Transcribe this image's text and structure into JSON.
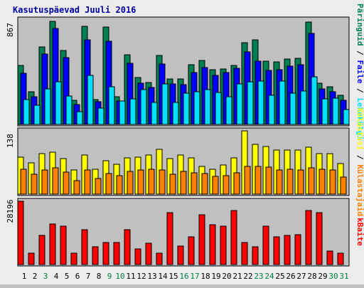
{
  "title": "Kasutuspäevad Juuli 2016",
  "colors": {
    "page_bg": "#ececec",
    "panel_bg": "#c0c0c0",
    "hits": "#008050",
    "files": "#0000ff",
    "pages": "#00e0ff",
    "visits": "#ffff00",
    "sites": "#ff8000",
    "kbytes": "#ff0000",
    "weekday": "#000000",
    "weekend": "#008040",
    "title": "#0000a0"
  },
  "chart_data": [
    {
      "type": "bar",
      "panel": "hits-files-pages",
      "ymax_label": "867",
      "ylim": [
        0,
        867
      ],
      "categories": [
        "1",
        "2",
        "3",
        "4",
        "5",
        "6",
        "7",
        "8",
        "9",
        "10",
        "11",
        "12",
        "13",
        "14",
        "15",
        "16",
        "17",
        "18",
        "19",
        "20",
        "21",
        "22",
        "23",
        "24",
        "25",
        "26",
        "27",
        "28",
        "29",
        "30",
        "31"
      ],
      "series": [
        {
          "name": "Päringuid",
          "color": "#008050",
          "values": [
            494,
            276,
            650,
            867,
            619,
            204,
            824,
            211,
            818,
            233,
            583,
            395,
            350,
            582,
            381,
            383,
            500,
            537,
            458,
            467,
            495,
            688,
            709,
            530,
            528,
            551,
            557,
            863,
            347,
            317,
            248
          ]
        },
        {
          "name": "Faile",
          "color": "#0000ff",
          "values": [
            432,
            232,
            591,
            805,
            562,
            165,
            711,
            191,
            700,
            196,
            512,
            346,
            309,
            508,
            343,
            335,
            434,
            481,
            412,
            436,
            475,
            610,
            530,
            457,
            463,
            490,
            500,
            763,
            297,
            276,
            204
          ]
        },
        {
          "name": "Lehekülgi",
          "color": "#00e0ff",
          "values": [
            211,
            162,
            300,
            358,
            239,
            109,
            411,
            139,
            317,
            199,
            213,
            290,
            187,
            343,
            187,
            265,
            275,
            290,
            269,
            233,
            338,
            358,
            364,
            247,
            363,
            266,
            282,
            401,
            214,
            222,
            127
          ]
        }
      ]
    },
    {
      "type": "bar",
      "panel": "visits-sites",
      "ymax_label": "138",
      "ylim": [
        0,
        138
      ],
      "categories": [
        "1",
        "2",
        "3",
        "4",
        "5",
        "6",
        "7",
        "8",
        "9",
        "10",
        "11",
        "12",
        "13",
        "14",
        "15",
        "16",
        "17",
        "18",
        "19",
        "20",
        "21",
        "22",
        "23",
        "24",
        "25",
        "26",
        "27",
        "28",
        "29",
        "30",
        "31"
      ],
      "series": [
        {
          "name": "Külastusi",
          "color": "#ffff00",
          "values": [
            81,
            68,
            89,
            92,
            77,
            53,
            85,
            55,
            73,
            65,
            79,
            81,
            86,
            98,
            77,
            85,
            79,
            60,
            55,
            64,
            79,
            138,
            108,
            104,
            96,
            96,
            96,
            102,
            89,
            89,
            66
          ]
        },
        {
          "name": "Külastajaid",
          "color": "#ff8000",
          "values": [
            55,
            43,
            52,
            58,
            48,
            30,
            52,
            34,
            45,
            41,
            49,
            53,
            54,
            52,
            44,
            50,
            47,
            45,
            39,
            41,
            46,
            60,
            60,
            59,
            52,
            54,
            53,
            57,
            55,
            52,
            37
          ]
        }
      ]
    },
    {
      "type": "bar",
      "panel": "kbytes",
      "ymax_label": "28196",
      "ylim": [
        0,
        28196
      ],
      "categories": [
        "1",
        "2",
        "3",
        "4",
        "5",
        "6",
        "7",
        "8",
        "9",
        "10",
        "11",
        "12",
        "13",
        "14",
        "15",
        "16",
        "17",
        "18",
        "19",
        "20",
        "21",
        "22",
        "23",
        "24",
        "25",
        "26",
        "27",
        "28",
        "29",
        "30",
        "31"
      ],
      "series": [
        {
          "name": "kBaite",
          "color": "#ff0000",
          "values": [
            28196,
            5042,
            12895,
            18019,
            16959,
            5042,
            15584,
            7794,
            9833,
            9833,
            15584,
            6877,
            9374,
            5042,
            23150,
            8251,
            12437,
            22233,
            17876,
            16959,
            24067,
            9833,
            7794,
            16959,
            12437,
            12895,
            13353,
            24067,
            23150,
            5958,
            5042
          ]
        }
      ]
    }
  ],
  "days": [
    {
      "label": "1",
      "weekend": false
    },
    {
      "label": "2",
      "weekend": false
    },
    {
      "label": "3",
      "weekend": true
    },
    {
      "label": "4",
      "weekend": false
    },
    {
      "label": "5",
      "weekend": false
    },
    {
      "label": "6",
      "weekend": false
    },
    {
      "label": "7",
      "weekend": false
    },
    {
      "label": "8",
      "weekend": false
    },
    {
      "label": "9",
      "weekend": true
    },
    {
      "label": "10",
      "weekend": true
    },
    {
      "label": "11",
      "weekend": false
    },
    {
      "label": "12",
      "weekend": false
    },
    {
      "label": "13",
      "weekend": false
    },
    {
      "label": "14",
      "weekend": false
    },
    {
      "label": "15",
      "weekend": false
    },
    {
      "label": "16",
      "weekend": true
    },
    {
      "label": "17",
      "weekend": true
    },
    {
      "label": "18",
      "weekend": false
    },
    {
      "label": "19",
      "weekend": false
    },
    {
      "label": "20",
      "weekend": false
    },
    {
      "label": "21",
      "weekend": false
    },
    {
      "label": "22",
      "weekend": false
    },
    {
      "label": "23",
      "weekend": true
    },
    {
      "label": "24",
      "weekend": true
    },
    {
      "label": "25",
      "weekend": false
    },
    {
      "label": "26",
      "weekend": false
    },
    {
      "label": "27",
      "weekend": false
    },
    {
      "label": "28",
      "weekend": false
    },
    {
      "label": "29",
      "weekend": false
    },
    {
      "label": "30",
      "weekend": true
    },
    {
      "label": "31",
      "weekend": true
    }
  ],
  "side_labels": {
    "top": [
      {
        "text": "Päringuid",
        "color": "#008050"
      },
      {
        "text": " / ",
        "color": "#000000"
      },
      {
        "text": "Faile",
        "color": "#0000ff"
      },
      {
        "text": " / ",
        "color": "#000000"
      },
      {
        "text": "Lehekülgi",
        "color": "#00e0ff"
      }
    ],
    "middle": [
      {
        "text": "Külastusi",
        "color": "#ffff00"
      },
      {
        "text": " / ",
        "color": "#000000"
      },
      {
        "text": "Külastajaid",
        "color": "#ff8000"
      }
    ],
    "bottom": [
      {
        "text": "kBaite",
        "color": "#ff0000"
      }
    ]
  }
}
